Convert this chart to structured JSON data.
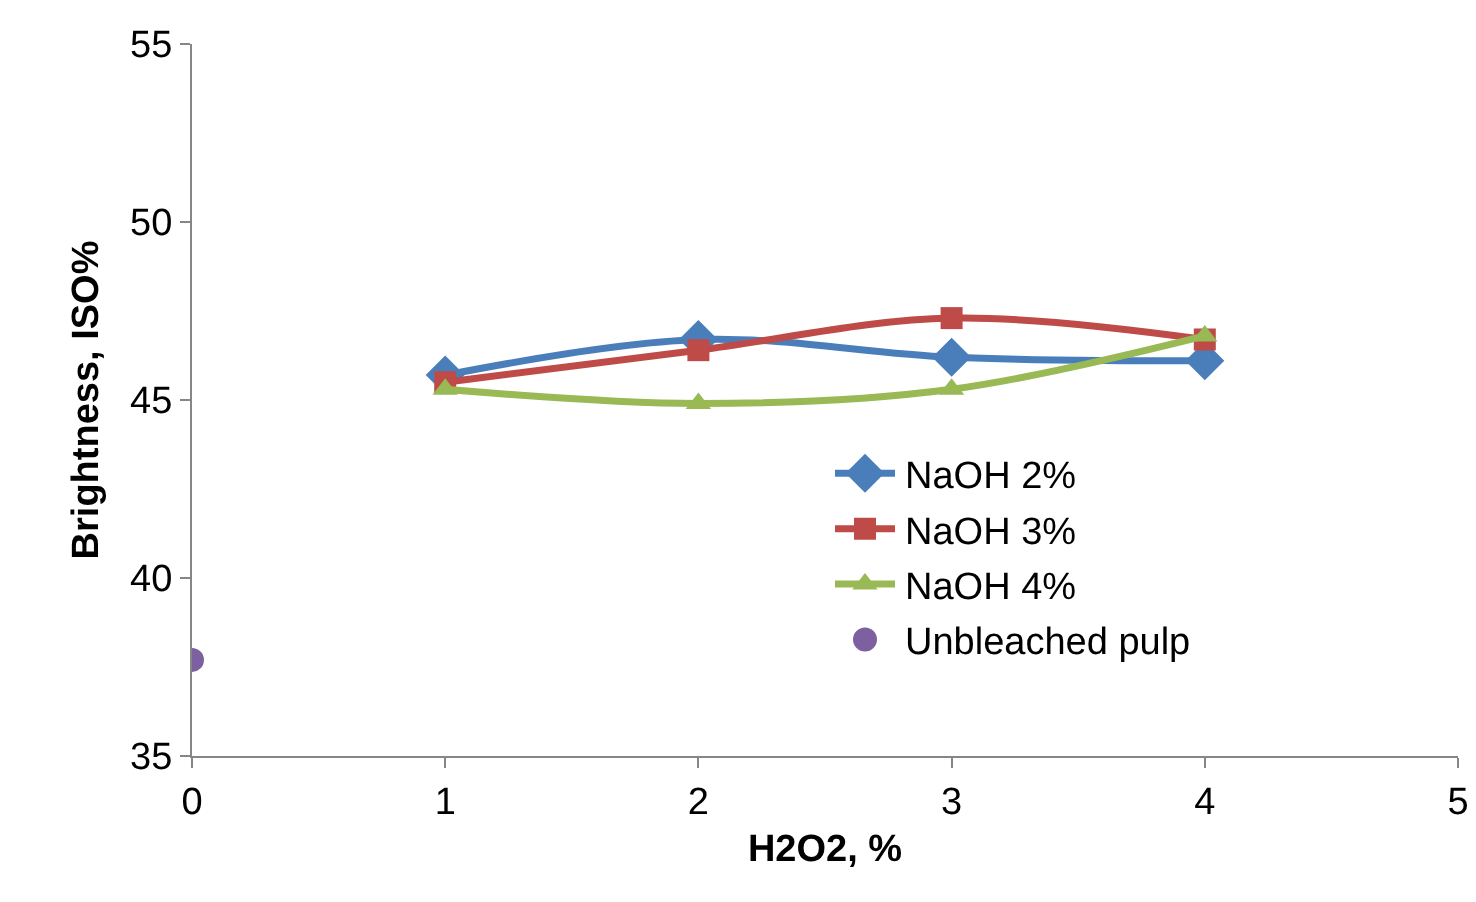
{
  "chart_data": {
    "type": "line",
    "xlabel": "H2O2, %",
    "ylabel": "Brightness, ISO%",
    "xlim": [
      0,
      5
    ],
    "xticks": [
      0,
      1,
      2,
      3,
      4,
      5
    ],
    "ylim": [
      35,
      55
    ],
    "yticks": [
      35,
      40,
      45,
      50,
      55
    ],
    "grid": false,
    "legend": "right",
    "line_style": "solid",
    "series": [
      {
        "name": "NaOH 2%",
        "color": "#4a7ebb",
        "marker": "diamond",
        "x": [
          1,
          2,
          3,
          4
        ],
        "values": [
          45.7,
          46.7,
          46.2,
          46.1
        ]
      },
      {
        "name": "NaOH 3%",
        "color": "#be4b48",
        "marker": "square",
        "x": [
          1,
          2,
          3,
          4
        ],
        "values": [
          45.5,
          46.4,
          47.3,
          46.7
        ]
      },
      {
        "name": "NaOH 4%",
        "color": "#98b954",
        "marker": "triangle",
        "x": [
          1,
          2,
          3,
          4
        ],
        "values": [
          45.3,
          44.9,
          45.3,
          46.8
        ]
      },
      {
        "name": "Unbleached pulp",
        "color": "#7d60a0",
        "marker": "circle",
        "type": "scatter",
        "x": [
          0
        ],
        "values": [
          37.7
        ]
      }
    ]
  }
}
